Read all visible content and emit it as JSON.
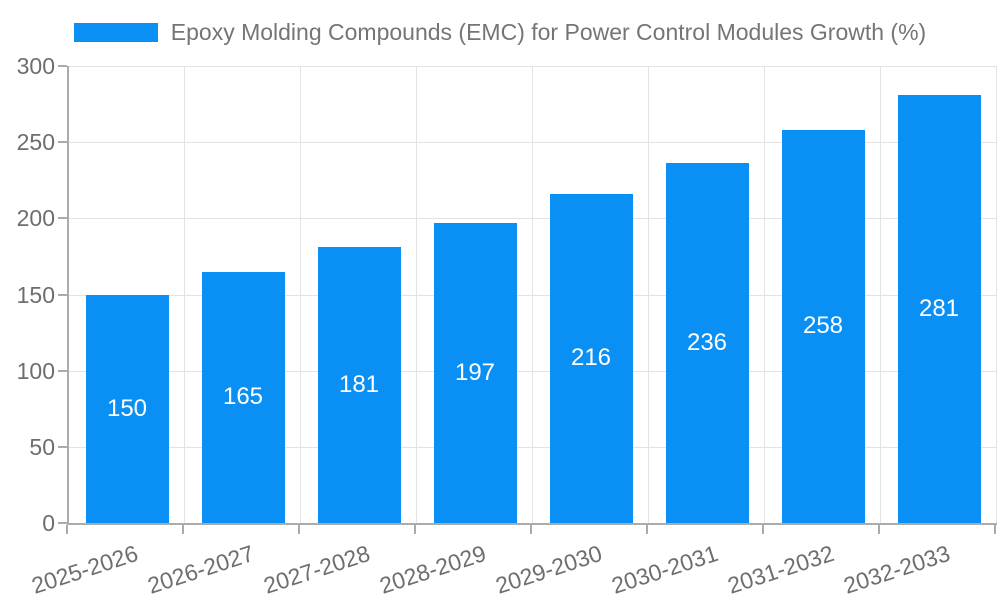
{
  "legend": {
    "label": "Epoxy Molding Compounds (EMC) for Power Control Modules Growth (%)",
    "swatch_color": "#0a90f4"
  },
  "chart_data": {
    "type": "bar",
    "title": "",
    "legend_entries": [
      "Epoxy Molding Compounds (EMC) for Power Control Modules Growth (%)"
    ],
    "legend_position": "top",
    "categories": [
      "2025-2026",
      "2026-2027",
      "2027-2028",
      "2028-2029",
      "2029-2030",
      "2030-2031",
      "2031-2032",
      "2032-2033"
    ],
    "series": [
      {
        "name": "Epoxy Molding Compounds (EMC) for Power Control Modules Growth (%)",
        "values": [
          150,
          165,
          181,
          197,
          216,
          236,
          258,
          281
        ]
      }
    ],
    "xlabel": "",
    "ylabel": "",
    "ylim": [
      0,
      300
    ],
    "yticks": [
      0,
      50,
      100,
      150,
      200,
      250,
      300
    ],
    "grid": true,
    "bar_color": "#0a90f4",
    "value_label_color": "#ffffff",
    "axis_color": "#ababab",
    "grid_color": "#e3e3e3",
    "tick_label_color": "#6e6e6e"
  }
}
